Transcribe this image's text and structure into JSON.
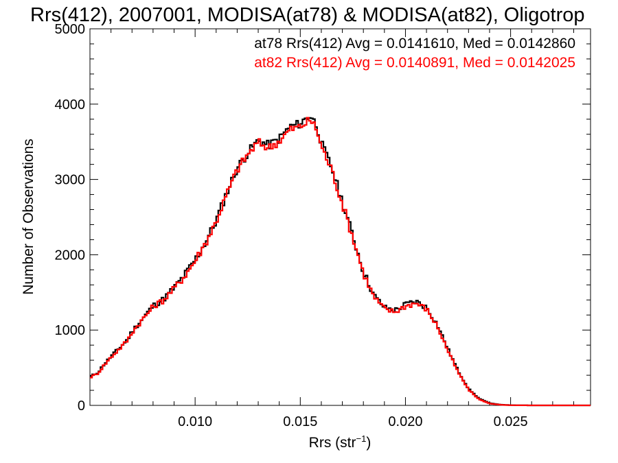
{
  "chart_data": {
    "type": "line",
    "title": "Rrs(412), 2007001, MODISA(at78) & MODISA(at82), Oligotrop",
    "xlabel": "Rrs (str",
    "xlabel_sup": "−1",
    "xlabel_close": ")",
    "ylabel": "Number of Observations",
    "xlim": [
      0.005,
      0.0288
    ],
    "ylim": [
      0,
      5000
    ],
    "xticks": [
      0.01,
      0.015,
      0.02,
      0.025
    ],
    "xtick_labels": [
      "0.010",
      "0.015",
      "0.020",
      "0.025"
    ],
    "yticks": [
      0,
      1000,
      2000,
      3000,
      4000,
      5000
    ],
    "ytick_labels": [
      "0",
      "1000",
      "2000",
      "3000",
      "4000",
      "5000"
    ],
    "step_style": "histogram",
    "grid": false,
    "annotations": [
      {
        "text": "at78 Rrs(412) Avg = 0.0141610, Med = 0.0142860",
        "color": "#000000"
      },
      {
        "text": "at82 Rrs(412) Avg = 0.0140891, Med = 0.0142025",
        "color": "#ff0000"
      }
    ],
    "series": [
      {
        "color": "#000000",
        "x": [
          0.005,
          0.0054,
          0.0056,
          0.006,
          0.0064,
          0.0068,
          0.007,
          0.0075,
          0.008,
          0.0085,
          0.009,
          0.0095,
          0.01,
          0.0105,
          0.011,
          0.0115,
          0.012,
          0.0125,
          0.013,
          0.0135,
          0.014,
          0.0145,
          0.015,
          0.0153,
          0.0155,
          0.0158,
          0.016,
          0.0165,
          0.017,
          0.0175,
          0.018,
          0.0185,
          0.019,
          0.0195,
          0.02,
          0.0205,
          0.021,
          0.0215,
          0.022,
          0.0225,
          0.023,
          0.0235,
          0.024,
          0.0245,
          0.025,
          0.026,
          0.027,
          0.0288
        ],
        "values": [
          380,
          440,
          520,
          650,
          760,
          880,
          980,
          1150,
          1320,
          1410,
          1560,
          1730,
          1930,
          2170,
          2450,
          2820,
          3150,
          3350,
          3520,
          3450,
          3540,
          3700,
          3740,
          3820,
          3850,
          3700,
          3480,
          3150,
          2700,
          2250,
          1780,
          1460,
          1300,
          1260,
          1340,
          1380,
          1300,
          1080,
          760,
          460,
          220,
          90,
          30,
          10,
          3,
          0,
          0,
          0
        ]
      },
      {
        "color": "#ff0000",
        "x": [
          0.005,
          0.0054,
          0.0056,
          0.006,
          0.0064,
          0.0068,
          0.007,
          0.0075,
          0.008,
          0.0085,
          0.009,
          0.0095,
          0.01,
          0.0105,
          0.011,
          0.0115,
          0.012,
          0.0125,
          0.013,
          0.0135,
          0.014,
          0.0145,
          0.015,
          0.0153,
          0.0155,
          0.0158,
          0.016,
          0.0165,
          0.017,
          0.0175,
          0.018,
          0.0185,
          0.019,
          0.0195,
          0.02,
          0.0205,
          0.021,
          0.0215,
          0.022,
          0.0225,
          0.023,
          0.0235,
          0.024,
          0.0245,
          0.025,
          0.026,
          0.027,
          0.0288
        ],
        "values": [
          370,
          430,
          510,
          640,
          750,
          870,
          970,
          1140,
          1310,
          1400,
          1550,
          1720,
          1920,
          2160,
          2440,
          2800,
          3130,
          3330,
          3490,
          3420,
          3510,
          3660,
          3700,
          3760,
          3790,
          3650,
          3440,
          3120,
          2680,
          2230,
          1760,
          1440,
          1280,
          1240,
          1320,
          1360,
          1280,
          1060,
          740,
          440,
          210,
          80,
          25,
          8,
          2,
          0,
          0,
          0
        ]
      }
    ]
  }
}
